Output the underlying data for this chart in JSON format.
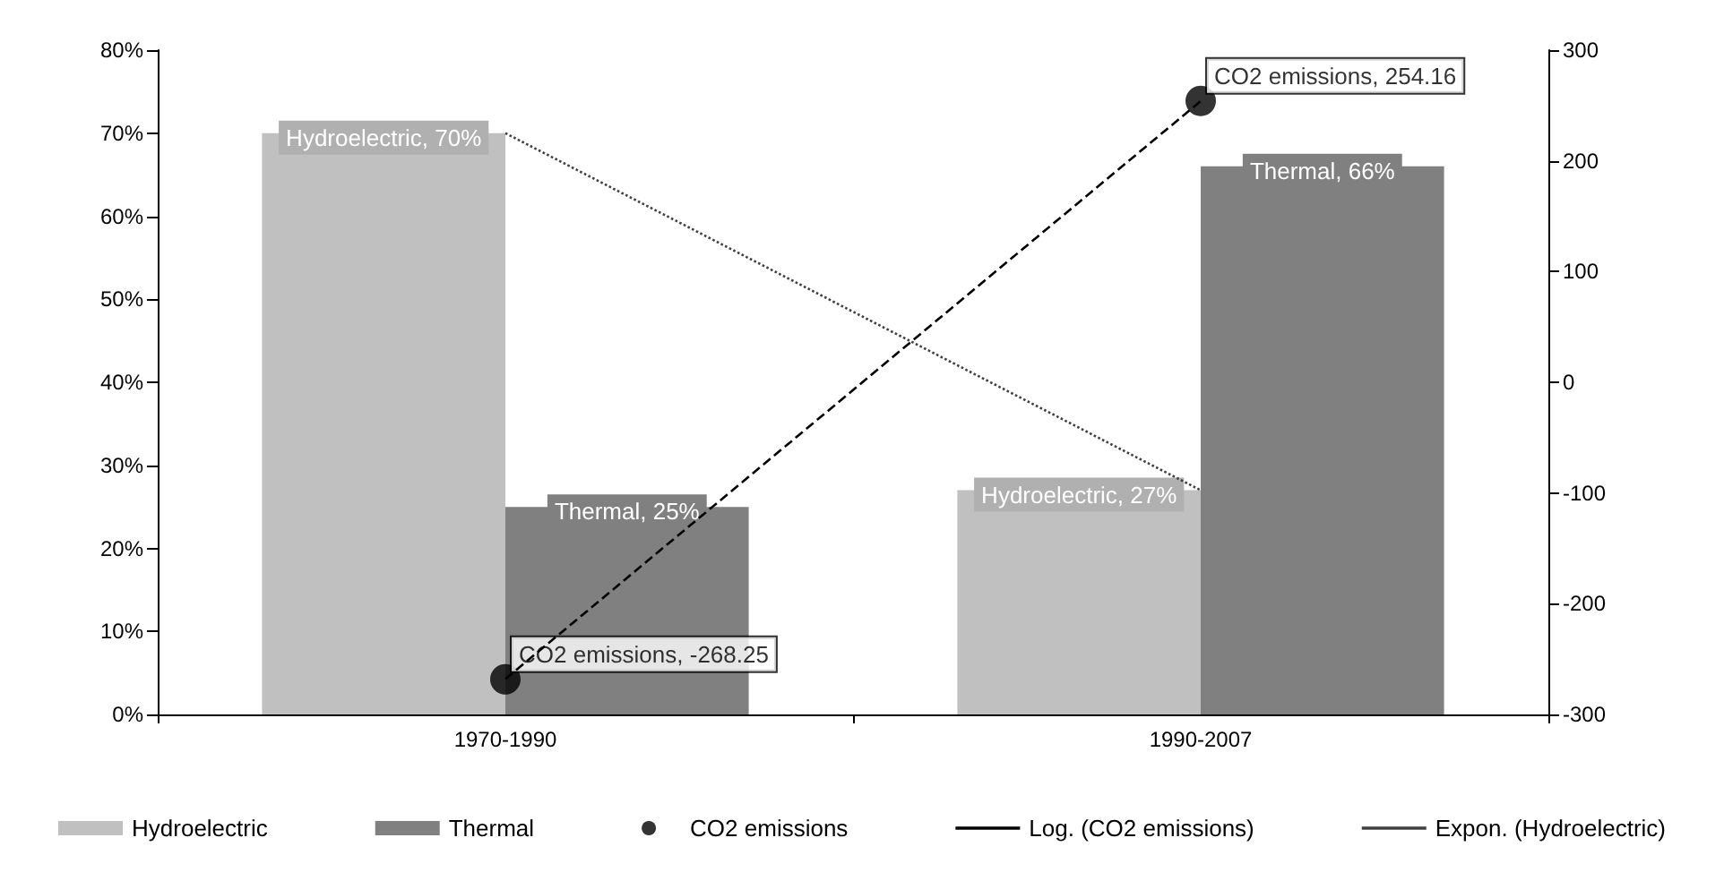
{
  "chart_data": {
    "type": "bar",
    "categories": [
      "1970-1990",
      "1990-2007"
    ],
    "series": [
      {
        "name": "Hydroelectric",
        "color": "#c0c0c0",
        "values": [
          70,
          27
        ],
        "value_labels": [
          "Hydroelectric, 70%",
          "Hydroelectric, 27%"
        ]
      },
      {
        "name": "Thermal",
        "color": "#808080",
        "values": [
          25,
          66
        ],
        "value_labels": [
          "Thermal, 25%",
          "Thermal, 66%"
        ]
      },
      {
        "name": "CO2 emissions",
        "type": "scatter",
        "marker": "circle",
        "axis": "y2",
        "color": "#000000",
        "x": [
          "1970-1990",
          "1990-2007"
        ],
        "values": [
          -268.25,
          254.16
        ],
        "value_labels": [
          "CO2 emissions, -268.25",
          "CO2 emissions, 254.16"
        ]
      },
      {
        "name": "Log. (CO2 emissions)",
        "type": "line",
        "axis": "y2",
        "color": "#000000",
        "line_style": "dashed",
        "x": [
          "1970-1990",
          "1990-2007"
        ],
        "values": [
          -268,
          254
        ]
      },
      {
        "name": "Expon. (Hydroelectric)",
        "type": "line",
        "color": "#404040",
        "line_style": "dotted",
        "x": [
          "1970-1990",
          "1990-2007"
        ],
        "values": [
          70,
          27
        ]
      }
    ],
    "ylim": [
      0,
      80
    ],
    "yticks": [
      {
        "value": 0,
        "label": "0%"
      },
      {
        "value": 10,
        "label": "10%"
      },
      {
        "value": 20,
        "label": "20%"
      },
      {
        "value": 30,
        "label": "30%"
      },
      {
        "value": 40,
        "label": "40%"
      },
      {
        "value": 50,
        "label": "50%"
      },
      {
        "value": 60,
        "label": "60%"
      },
      {
        "value": 70,
        "label": "70%"
      },
      {
        "value": 80,
        "label": "80%"
      }
    ],
    "y2lim": [
      -300,
      300
    ],
    "y2ticks": [
      -300,
      -200,
      -100,
      0,
      100,
      200,
      300
    ],
    "grid": false,
    "legend": "bottom"
  }
}
